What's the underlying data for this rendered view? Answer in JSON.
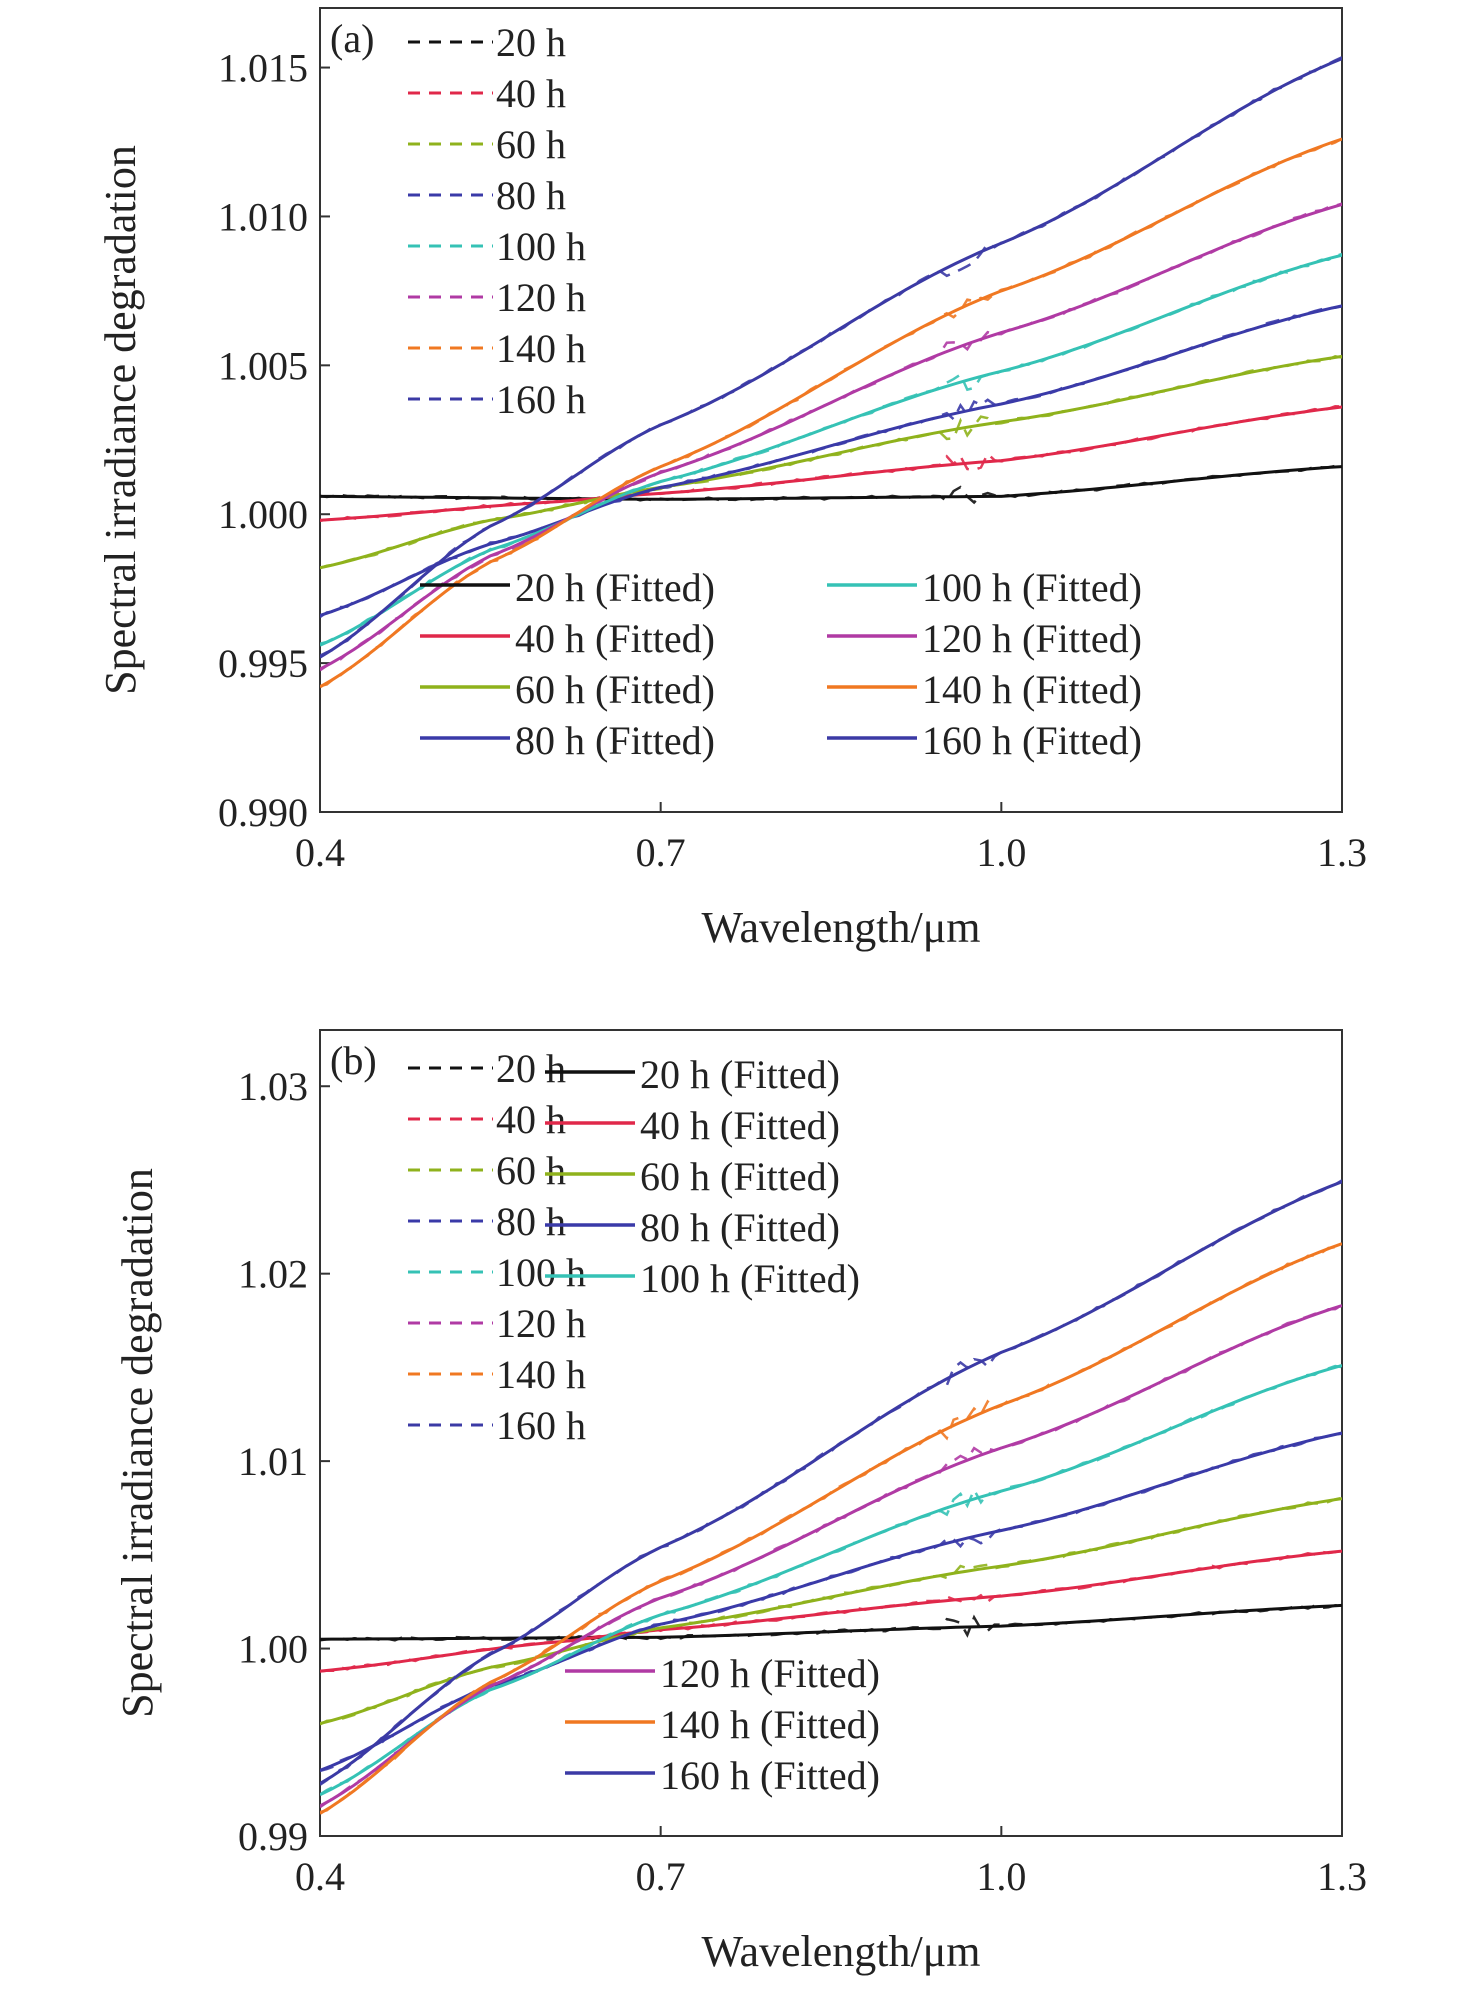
{
  "chart_data": [
    {
      "type": "line",
      "panel_label": "(a)",
      "xlabel": "Wavelength/μm",
      "ylabel": "Spectral irradiance degradation",
      "xlim": [
        0.4,
        1.3
      ],
      "ylim": [
        0.99,
        1.017
      ],
      "xticks": [
        "0.4",
        "0.7",
        "1.0",
        "1.3"
      ],
      "xtick_values": [
        0.4,
        0.7,
        1.0,
        1.3
      ],
      "yticks": [
        "0.990",
        "0.995",
        "1.000",
        "1.005",
        "1.010",
        "1.015"
      ],
      "ytick_values": [
        0.99,
        0.995,
        1.0,
        1.005,
        1.01,
        1.015
      ],
      "legend_measured": [
        "20 h",
        "40 h",
        "60 h",
        "80 h",
        "100 h",
        "120 h",
        "140 h",
        "160 h"
      ],
      "legend_fitted": [
        "20 h (Fitted)",
        "40 h (Fitted)",
        "60 h (Fitted)",
        "80 h (Fitted)",
        "100 h (Fitted)",
        "120 h (Fitted)",
        "140 h (Fitted)",
        "160 h (Fitted)"
      ],
      "series": [
        {
          "name": "20 h (Fitted)",
          "color": "#111111",
          "x": [
            0.4,
            0.7,
            1.0,
            1.3
          ],
          "y": [
            1.0006,
            1.0005,
            1.0006,
            1.0016
          ]
        },
        {
          "name": "40 h (Fitted)",
          "color": "#e0284a",
          "x": [
            0.4,
            0.6,
            0.7,
            1.0,
            1.3
          ],
          "y": [
            0.9998,
            1.0004,
            1.0007,
            1.0018,
            1.0036
          ]
        },
        {
          "name": "60 h (Fitted)",
          "color": "#8fb21c",
          "x": [
            0.4,
            0.55,
            0.7,
            1.0,
            1.3
          ],
          "y": [
            0.9982,
            0.9998,
            1.0009,
            1.0031,
            1.0053
          ]
        },
        {
          "name": "80 h (Fitted)",
          "color": "#3a3aa8",
          "x": [
            0.4,
            0.55,
            0.7,
            1.0,
            1.3
          ],
          "y": [
            0.9966,
            0.999,
            1.0009,
            1.0037,
            1.007
          ]
        },
        {
          "name": "100 h (Fitted)",
          "color": "#35c2b5",
          "x": [
            0.4,
            0.55,
            0.7,
            1.0,
            1.3
          ],
          "y": [
            0.9956,
            0.9988,
            1.0011,
            1.0048,
            1.0087
          ]
        },
        {
          "name": "120 h (Fitted)",
          "color": "#b03aa4",
          "x": [
            0.4,
            0.55,
            0.7,
            1.0,
            1.3
          ],
          "y": [
            0.9948,
            0.9986,
            1.0014,
            1.0061,
            1.0104
          ]
        },
        {
          "name": "140 h (Fitted)",
          "color": "#f07822",
          "x": [
            0.4,
            0.55,
            0.7,
            1.0,
            1.3
          ],
          "y": [
            0.9942,
            0.9984,
            1.0016,
            1.0075,
            1.0126
          ]
        },
        {
          "name": "160 h (Fitted)",
          "color": "#3b3aa5",
          "x": [
            0.4,
            0.55,
            0.7,
            1.0,
            1.3
          ],
          "y": [
            0.9952,
            0.9996,
            1.003,
            1.0091,
            1.0153
          ]
        }
      ]
    },
    {
      "type": "line",
      "panel_label": "(b)",
      "xlabel": "Wavelength/μm",
      "ylabel": "Spectral irradiance degradation",
      "xlim": [
        0.4,
        1.3
      ],
      "ylim": [
        0.99,
        1.033
      ],
      "xticks": [
        "0.4",
        "0.7",
        "1.0",
        "1.3"
      ],
      "xtick_values": [
        0.4,
        0.7,
        1.0,
        1.3
      ],
      "yticks": [
        "0.99",
        "1.00",
        "1.01",
        "1.02",
        "1.03"
      ],
      "ytick_values": [
        0.99,
        1.0,
        1.01,
        1.02,
        1.03
      ],
      "legend_measured": [
        "20 h",
        "40 h",
        "60 h",
        "80 h",
        "100 h",
        "120 h",
        "140 h",
        "160 h"
      ],
      "legend_fitted": [
        "20 h (Fitted)",
        "40 h (Fitted)",
        "60 h (Fitted)",
        "80 h (Fitted)",
        "100 h (Fitted)",
        "120 h (Fitted)",
        "140 h (Fitted)",
        "160 h (Fitted)"
      ],
      "series": [
        {
          "name": "20 h (Fitted)",
          "color": "#111111",
          "x": [
            0.4,
            0.7,
            1.0,
            1.3
          ],
          "y": [
            1.0005,
            1.0006,
            1.0012,
            1.0023
          ]
        },
        {
          "name": "40 h (Fitted)",
          "color": "#e0284a",
          "x": [
            0.4,
            0.6,
            0.7,
            1.0,
            1.3
          ],
          "y": [
            0.9988,
            1.0003,
            1.001,
            1.0028,
            1.0052
          ]
        },
        {
          "name": "60 h (Fitted)",
          "color": "#8fb21c",
          "x": [
            0.4,
            0.55,
            0.7,
            1.0,
            1.3
          ],
          "y": [
            0.996,
            0.999,
            1.0011,
            1.0044,
            1.008
          ]
        },
        {
          "name": "80 h (Fitted)",
          "color": "#3a3aa8",
          "x": [
            0.4,
            0.55,
            0.7,
            1.0,
            1.3
          ],
          "y": [
            0.9935,
            0.998,
            1.0013,
            1.0063,
            1.0115
          ]
        },
        {
          "name": "100 h (Fitted)",
          "color": "#35c2b5",
          "x": [
            0.4,
            0.55,
            0.7,
            1.0,
            1.3
          ],
          "y": [
            0.9922,
            0.9978,
            1.0018,
            1.0084,
            1.0151
          ]
        },
        {
          "name": "120 h (Fitted)",
          "color": "#b03aa4",
          "x": [
            0.4,
            0.55,
            0.7,
            1.0,
            1.3
          ],
          "y": [
            0.9916,
            0.998,
            1.0027,
            1.0107,
            1.0183
          ]
        },
        {
          "name": "140 h (Fitted)",
          "color": "#f07822",
          "x": [
            0.4,
            0.55,
            0.7,
            1.0,
            1.3
          ],
          "y": [
            0.9912,
            0.9982,
            1.0036,
            1.013,
            1.0216
          ]
        },
        {
          "name": "160 h (Fitted)",
          "color": "#3b3aa5",
          "x": [
            0.4,
            0.55,
            0.7,
            1.0,
            1.3
          ],
          "y": [
            0.9928,
            0.9997,
            1.0054,
            1.0158,
            1.0249
          ]
        }
      ]
    }
  ],
  "legend_layout": {
    "panel_a_fitted_columns": [
      [
        0,
        1,
        2,
        3
      ],
      [
        4,
        5,
        6,
        7
      ]
    ],
    "panel_b_fitted_columns": [
      [
        0,
        1,
        2,
        3,
        4
      ],
      [
        5,
        6,
        7
      ]
    ]
  }
}
